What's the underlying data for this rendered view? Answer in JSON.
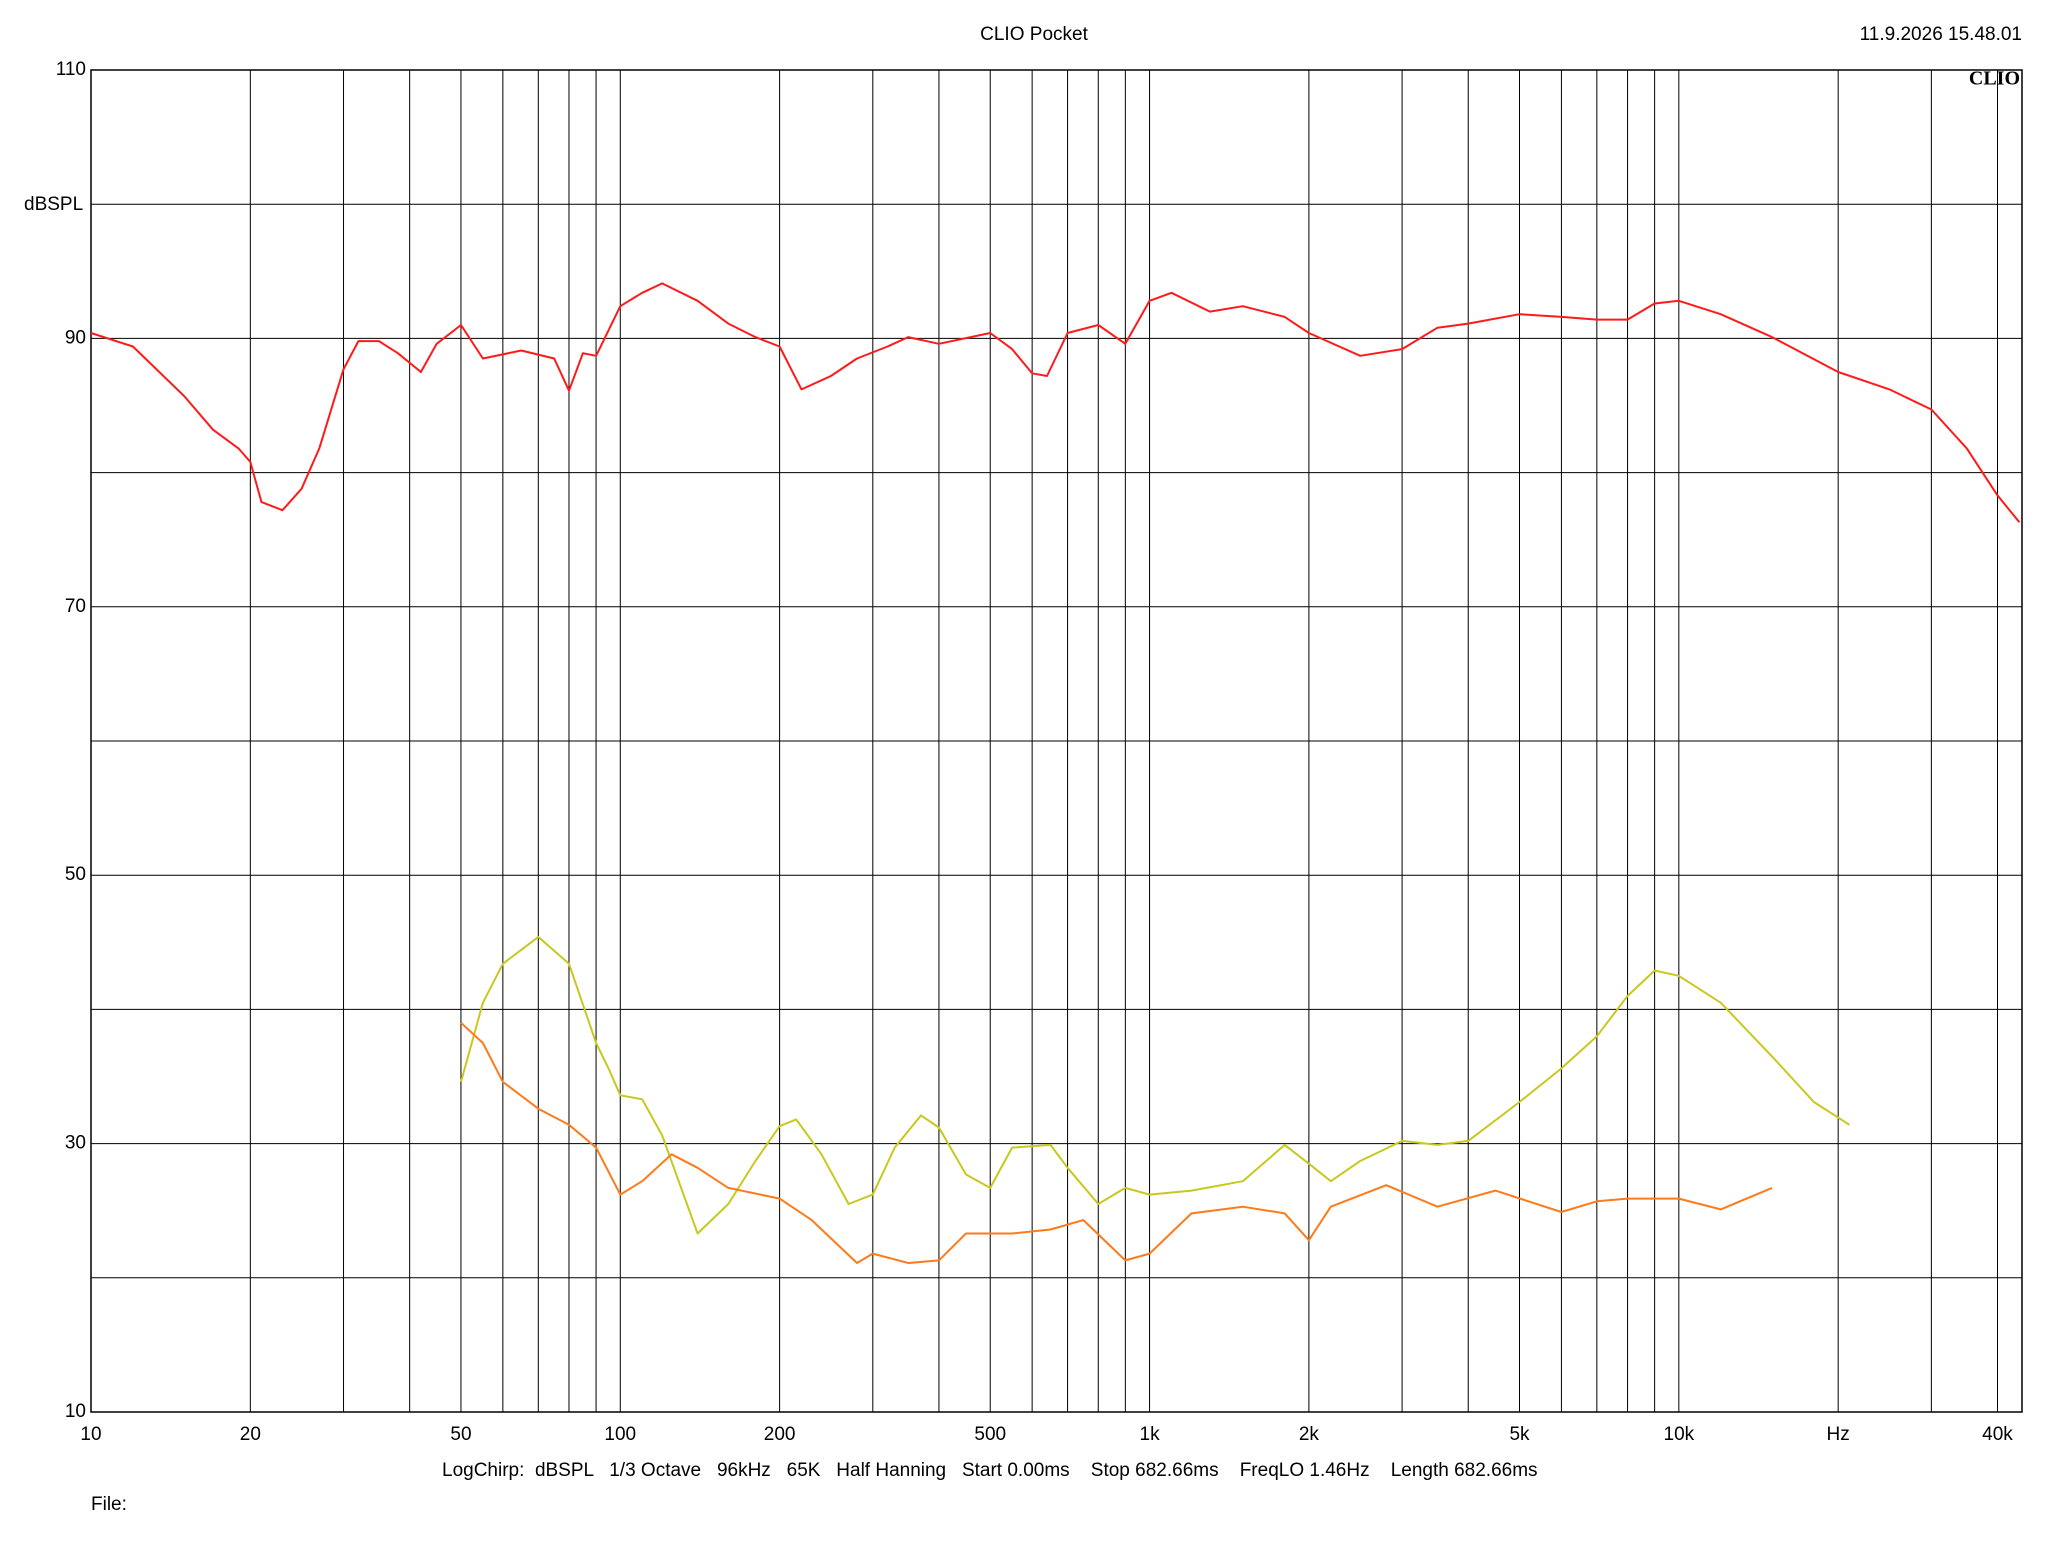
{
  "chart_data": {
    "type": "line",
    "title": "CLIO Pocket",
    "timestamp": "11.9.2026 15.48.01",
    "logo": "CLIO",
    "ylabel": "dBSPL",
    "info": "LogChirp:  dBSPL   1/3 Octave   96kHz   65K   Half Hanning   Start 0.00ms    Stop 682.66ms    FreqLO 1.46Hz    Length 682.66ms",
    "file_label": "File:",
    "xscale": "log",
    "grid": true,
    "xlim": [
      10,
      44500
    ],
    "ylim": [
      10,
      110
    ],
    "yticks": [
      10,
      30,
      50,
      70,
      90,
      110
    ],
    "minor_yticks": [
      20,
      40,
      60,
      80,
      100
    ],
    "xticks": [
      10,
      20,
      50,
      100,
      200,
      500,
      {
        "value": 1000,
        "label": "1k"
      },
      {
        "value": 2000,
        "label": "2k"
      },
      {
        "value": 5000,
        "label": "5k"
      },
      {
        "value": 10000,
        "label": "10k"
      },
      {
        "value": 20000,
        "label": "Hz"
      },
      {
        "value": 40000,
        "label": "40k"
      }
    ],
    "minor_xticks": [
      30,
      40,
      60,
      70,
      80,
      90,
      300,
      400,
      600,
      700,
      800,
      900,
      3000,
      4000,
      6000,
      7000,
      8000,
      9000,
      30000
    ],
    "series": [
      {
        "color": "#ff1a1a",
        "x": [
          10,
          12,
          15,
          17,
          19,
          20,
          21,
          23,
          25,
          27,
          30,
          32,
          35,
          38,
          42,
          45,
          50,
          55,
          65,
          75,
          80,
          85,
          90,
          100,
          110,
          120,
          140,
          160,
          180,
          200,
          220,
          250,
          280,
          320,
          350,
          400,
          500,
          550,
          600,
          640,
          700,
          800,
          900,
          1000,
          1100,
          1300,
          1500,
          1800,
          2000,
          2500,
          3000,
          3500,
          4000,
          5000,
          6000,
          7000,
          8000,
          9000,
          10000,
          12000,
          15000,
          20000,
          25000,
          30000,
          35000,
          40000,
          44000
        ],
        "values": [
          90.4,
          89.4,
          85.7,
          83.2,
          81.8,
          80.8,
          77.8,
          77.2,
          78.8,
          81.8,
          87.7,
          89.8,
          89.8,
          88.9,
          87.5,
          89.6,
          91.0,
          88.5,
          89.1,
          88.5,
          86.1,
          88.9,
          88.7,
          92.4,
          93.4,
          94.1,
          92.8,
          91.1,
          90.1,
          89.4,
          86.2,
          87.2,
          88.5,
          89.4,
          90.1,
          89.6,
          90.4,
          89.2,
          87.4,
          87.2,
          90.4,
          91.0,
          89.6,
          92.8,
          93.4,
          92.0,
          92.4,
          91.6,
          90.4,
          88.7,
          89.2,
          90.8,
          91.1,
          91.8,
          91.6,
          91.4,
          91.4,
          92.6,
          92.8,
          91.8,
          90.1,
          87.5,
          86.2,
          84.7,
          81.8,
          78.3,
          76.3
        ]
      },
      {
        "color": "#c8c81e",
        "x": [
          50,
          55,
          60,
          70,
          80,
          90,
          95,
          100,
          110,
          120,
          140,
          160,
          180,
          200,
          215,
          240,
          270,
          300,
          330,
          370,
          400,
          450,
          500,
          550,
          650,
          700,
          800,
          900,
          1000,
          1200,
          1500,
          1800,
          2000,
          2200,
          2500,
          3000,
          3500,
          4000,
          5000,
          6000,
          7000,
          8000,
          9000,
          10000,
          12000,
          15000,
          18000,
          21000
        ],
        "values": [
          34.6,
          40.5,
          43.4,
          45.4,
          43.4,
          37.5,
          35.6,
          33.6,
          33.3,
          30.6,
          23.3,
          25.5,
          28.7,
          31.3,
          31.8,
          29.2,
          25.5,
          26.2,
          29.7,
          32.1,
          31.2,
          27.7,
          26.7,
          29.7,
          29.9,
          28.2,
          25.5,
          26.7,
          26.2,
          26.5,
          27.2,
          29.9,
          28.5,
          27.2,
          28.7,
          30.2,
          29.9,
          30.2,
          33.1,
          35.6,
          38.0,
          41.0,
          42.9,
          42.5,
          40.5,
          36.5,
          33.1,
          31.4
        ]
      },
      {
        "color": "#ff7a1a",
        "x": [
          50,
          55,
          60,
          70,
          80,
          90,
          100,
          110,
          125,
          140,
          160,
          200,
          230,
          280,
          300,
          350,
          400,
          450,
          550,
          650,
          750,
          900,
          1000,
          1200,
          1500,
          1800,
          2000,
          2200,
          2800,
          3500,
          4500,
          6000,
          7000,
          8000,
          10000,
          12000,
          15000
        ],
        "values": [
          39.0,
          37.5,
          34.6,
          32.6,
          31.4,
          29.7,
          26.2,
          27.2,
          29.2,
          28.2,
          26.7,
          25.9,
          24.3,
          21.1,
          21.8,
          21.1,
          21.3,
          23.3,
          23.3,
          23.6,
          24.3,
          21.3,
          21.8,
          24.8,
          25.3,
          24.8,
          22.8,
          25.3,
          26.9,
          25.3,
          26.5,
          24.9,
          25.7,
          25.9,
          25.9,
          25.1,
          26.7
        ]
      }
    ]
  }
}
